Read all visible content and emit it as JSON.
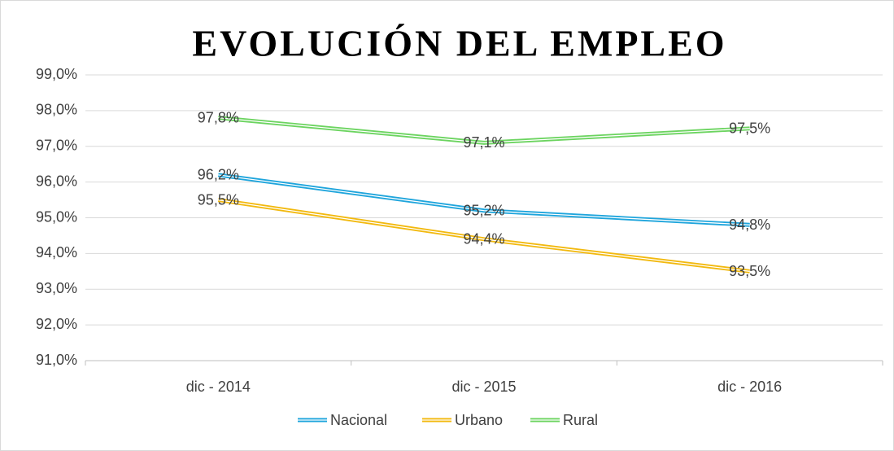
{
  "chart_data": {
    "type": "line",
    "title": "EVOLUCIÓN DEL EMPLEO",
    "categories": [
      "dic - 2014",
      "dic - 2015",
      "dic - 2016"
    ],
    "series": [
      {
        "name": "Nacional",
        "color": "#1fa5dc",
        "values": [
          96.2,
          95.2,
          94.8
        ],
        "value_labels": [
          "96,2%",
          "95,2%",
          "94,8%"
        ]
      },
      {
        "name": "Urbano",
        "color": "#f2b90f",
        "values": [
          95.5,
          94.4,
          93.5
        ],
        "value_labels": [
          "95,5%",
          "94,4%",
          "93,5%"
        ]
      },
      {
        "name": "Rural",
        "color": "#6cd460",
        "values": [
          97.8,
          97.1,
          97.5
        ],
        "value_labels": [
          "97,8%",
          "97,1%",
          "97,5%"
        ]
      }
    ],
    "ylim": [
      91,
      99
    ],
    "yticks": [
      {
        "value": 91,
        "label": "91,0%"
      },
      {
        "value": 92,
        "label": "92,0%"
      },
      {
        "value": 93,
        "label": "93,0%"
      },
      {
        "value": 94,
        "label": "94,0%"
      },
      {
        "value": 95,
        "label": "95,0%"
      },
      {
        "value": 96,
        "label": "96,0%"
      },
      {
        "value": 97,
        "label": "97,0%"
      },
      {
        "value": 98,
        "label": "98,0%"
      },
      {
        "value": 99,
        "label": "99,0%"
      }
    ],
    "grid": true,
    "legend": "bottom"
  }
}
